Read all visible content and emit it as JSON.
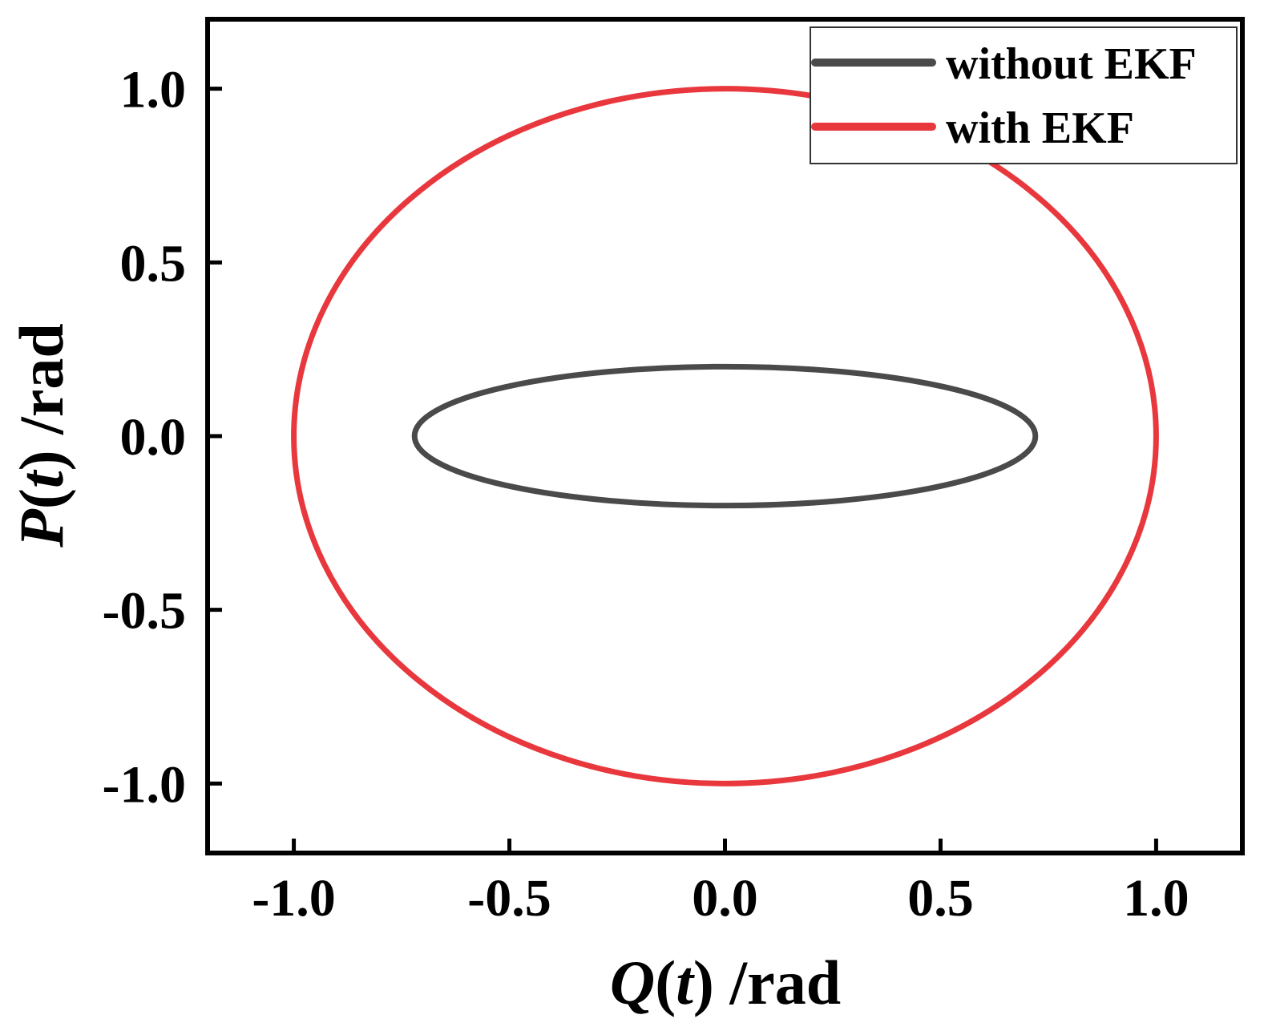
{
  "chart_data": {
    "type": "line",
    "xlabel": {
      "var": "Q",
      "arg": "t",
      "unit": " /rad"
    },
    "ylabel": {
      "var": "P",
      "arg": "t",
      "unit": " /rad"
    },
    "xlim": [
      -1.2,
      1.2
    ],
    "ylim": [
      -1.2,
      1.2
    ],
    "xticks": [
      -1.0,
      -0.5,
      0.0,
      0.5,
      1.0
    ],
    "yticks": [
      -1.0,
      -0.5,
      0.0,
      0.5,
      1.0
    ],
    "xtick_labels": [
      "-1.0",
      "-0.5",
      "0.0",
      "0.5",
      "1.0"
    ],
    "ytick_labels": [
      "-1.0",
      "-0.5",
      "0.0",
      "0.5",
      "1.0"
    ],
    "grid": false,
    "legend_position": "top-right",
    "series": [
      {
        "name": "without EKF",
        "color": "#4a4a4a",
        "shape": "ellipse",
        "center": [
          0.0,
          0.0
        ],
        "semi_axis_x": 0.72,
        "semi_axis_y": 0.2
      },
      {
        "name": "with EKF",
        "color": "#e8383d",
        "shape": "ellipse",
        "center": [
          0.0,
          0.0
        ],
        "semi_axis_x": 1.0,
        "semi_axis_y": 1.0
      }
    ]
  }
}
